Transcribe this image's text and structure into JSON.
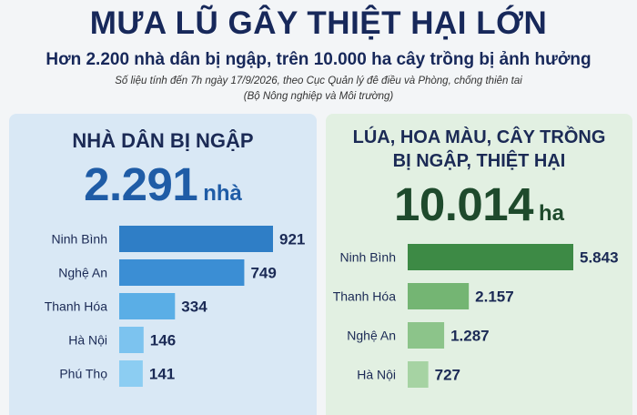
{
  "header": {
    "title": "MƯA LŨ GÂY THIỆT HẠI LỚN",
    "subtitle": "Hơn 2.200 nhà dân bị ngập, trên 10.000 ha cây trồng bị ảnh hưởng",
    "source_line1": "Số liệu tính đến 7h ngày 17/9/2026, theo Cục Quản lý đê điều và Phòng, chống thiên tai",
    "source_line2": "(Bộ Nông nghiệp và Môi trường)"
  },
  "panels": {
    "houses": {
      "heading": "NHÀ DÂN BỊ NGẬP",
      "total": "2.291",
      "unit": "nhà"
    },
    "crops": {
      "heading_line1": "LÚA, HOA MÀU, CÂY TRỒNG",
      "heading_line2": "BỊ NGẬP, THIỆT HẠI",
      "total": "10.014",
      "unit": "ha"
    }
  },
  "chart_data": [
    {
      "type": "bar",
      "orientation": "horizontal",
      "categories": [
        "Ninh Bình",
        "Nghệ An",
        "Thanh Hóa",
        "Hà Nội",
        "Phú Thọ"
      ],
      "values": [
        921,
        749,
        334,
        146,
        141
      ],
      "value_labels": [
        "921",
        "749",
        "334",
        "146",
        "141"
      ],
      "colors": [
        "#2f7ec6",
        "#3b8ed4",
        "#5aaee6",
        "#7cc3ef",
        "#8ccdf2"
      ]
    },
    {
      "type": "bar",
      "orientation": "horizontal",
      "categories": [
        "Ninh Bình",
        "Thanh Hóa",
        "Nghệ An",
        "Hà Nội"
      ],
      "values": [
        5843,
        2157,
        1287,
        727
      ],
      "value_labels": [
        "5.843",
        "2.157",
        "1.287",
        "727"
      ],
      "colors": [
        "#3d8a45",
        "#74b573",
        "#8cc48a",
        "#a6d3a3"
      ]
    }
  ]
}
